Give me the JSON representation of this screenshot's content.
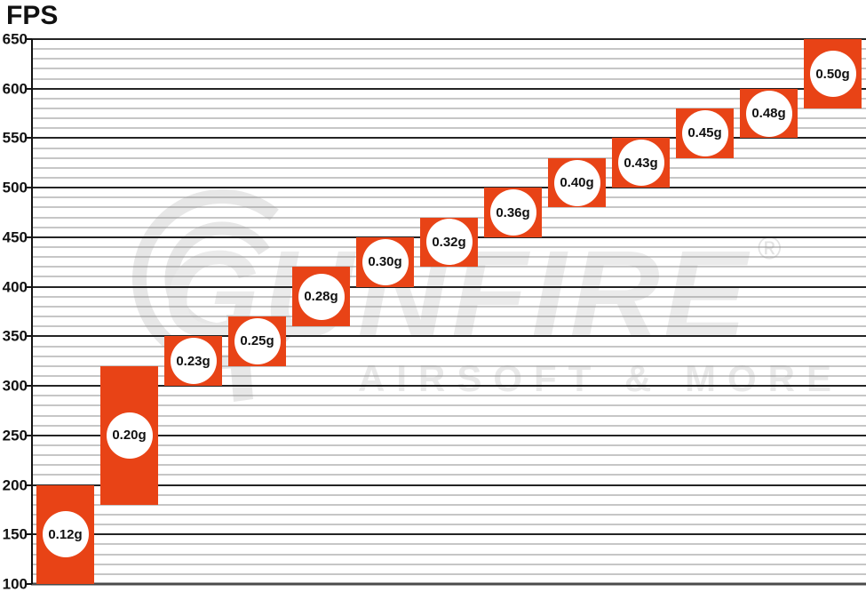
{
  "title": "FPS",
  "watermark": {
    "brand": "GUNFIRE",
    "tagline": "AIRSOFT & MORE",
    "registered": "®"
  },
  "colors": {
    "bar": "#e84316",
    "grid_minor": "#8d8d8d",
    "grid_major": "#242424",
    "axis": "#111111",
    "watermark": "#e9e9e9"
  },
  "chart_data": {
    "type": "bar",
    "subtype": "floating-range-columns",
    "title": "",
    "xlabel": "",
    "ylabel": "FPS",
    "ylim": [
      100,
      650
    ],
    "y_tick_step": 50,
    "y_minor_step": 10,
    "grid": true,
    "y_tick_labels": [
      "650",
      "600",
      "550",
      "500",
      "450",
      "400",
      "350",
      "300",
      "250",
      "200",
      "150",
      "100"
    ],
    "categories": [
      "0.12g",
      "0.20g",
      "0.23g",
      "0.25g",
      "0.28g",
      "0.30g",
      "0.32g",
      "0.36g",
      "0.40g",
      "0.43g",
      "0.45g",
      "0.48g",
      "0.50g"
    ],
    "bars": [
      {
        "label": "0.12g",
        "min": 100,
        "max": 200
      },
      {
        "label": "0.20g",
        "min": 180,
        "max": 320
      },
      {
        "label": "0.23g",
        "min": 300,
        "max": 350
      },
      {
        "label": "0.25g",
        "min": 320,
        "max": 370
      },
      {
        "label": "0.28g",
        "min": 360,
        "max": 420
      },
      {
        "label": "0.30g",
        "min": 400,
        "max": 450
      },
      {
        "label": "0.32g",
        "min": 420,
        "max": 470
      },
      {
        "label": "0.36g",
        "min": 450,
        "max": 500
      },
      {
        "label": "0.40g",
        "min": 480,
        "max": 530
      },
      {
        "label": "0.43g",
        "min": 500,
        "max": 550
      },
      {
        "label": "0.45g",
        "min": 530,
        "max": 580
      },
      {
        "label": "0.48g",
        "min": 550,
        "max": 600
      },
      {
        "label": "0.50g",
        "min": 580,
        "max": 650
      }
    ]
  }
}
